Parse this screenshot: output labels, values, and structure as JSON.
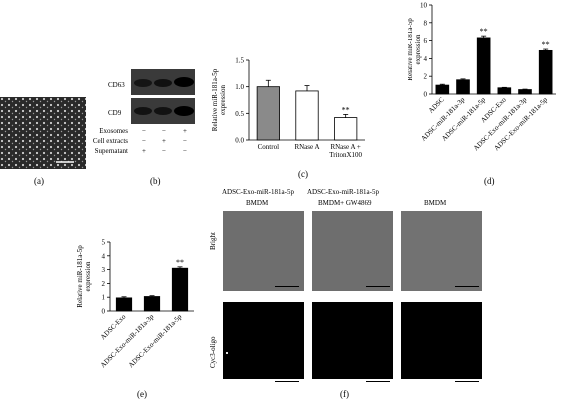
{
  "panels": {
    "a": {
      "letter": "(a)"
    },
    "b": {
      "letter": "(b)",
      "bands": [
        "CD63",
        "CD9"
      ],
      "rows": [
        {
          "label": "Exosomes",
          "marks": [
            "−",
            "−",
            "+"
          ]
        },
        {
          "label": "Cell extracts",
          "marks": [
            "−",
            "+",
            "−"
          ]
        },
        {
          "label": "Supernatant",
          "marks": [
            "+",
            "−",
            "−"
          ]
        }
      ]
    },
    "c": {
      "letter": "(c)"
    },
    "d": {
      "letter": "(d)"
    },
    "e": {
      "letter": "(e)"
    },
    "f": {
      "letter": "(f)",
      "col_headers": [
        {
          "line1": "ADSC-Exo-miR-181a-5p",
          "line2": "BMDM"
        },
        {
          "line1": "ADSC-Exo-miR-181a-5p",
          "line2": "BMDM+ GW4869"
        },
        {
          "line1": "",
          "line2": "BMDM"
        }
      ],
      "row_labels": [
        "Bright",
        "Cyc3-oligo"
      ]
    }
  },
  "chart_data": [
    {
      "type": "bar",
      "panel": "c",
      "categories": [
        "Control",
        "RNase A",
        "RNase A + TritonX100"
      ],
      "values": [
        1.0,
        0.92,
        0.42
      ],
      "errors": [
        0.12,
        0.1,
        0.06
      ],
      "bar_colors": [
        "#8a8a8a",
        "#ffffff",
        "#ffffff"
      ],
      "significance": [
        "",
        "",
        "**"
      ],
      "ylabel": "Relative miR-181a-5p expression",
      "ylim": [
        0,
        1.5
      ],
      "yticks": [
        "0.0",
        "0.5",
        "1.0",
        "1.5"
      ]
    },
    {
      "type": "bar",
      "panel": "d",
      "categories": [
        "ADSC",
        "ADSC-miR-181a-3p",
        "ADSC-miR-181a-5p",
        "ADSC-Exo",
        "ADSC-Exo-miR-181a-3p",
        "ADSC-Exo-miR-181a-5p"
      ],
      "values": [
        1.0,
        1.6,
        6.3,
        0.7,
        0.5,
        4.9
      ],
      "errors": [
        0.1,
        0.1,
        0.2,
        0.05,
        0.05,
        0.15
      ],
      "significance": [
        "",
        "",
        "**",
        "",
        "",
        "**"
      ],
      "ylabel": "Relative miR-181a-5p expression",
      "ylim": [
        0,
        10
      ],
      "yticks": [
        "0",
        "2",
        "4",
        "6",
        "8",
        "10"
      ]
    },
    {
      "type": "bar",
      "panel": "e",
      "categories": [
        "ADSC-Exo",
        "ADSC-Exo-miR-181a-3p",
        "ADSC-Exo-miR-181a-5p"
      ],
      "values": [
        0.95,
        1.05,
        3.1
      ],
      "errors": [
        0.08,
        0.06,
        0.1
      ],
      "significance": [
        "",
        "",
        "**"
      ],
      "ylabel": "Relative miR-181a-5p expression",
      "ylim": [
        0,
        5
      ],
      "yticks": [
        "0",
        "1",
        "2",
        "3",
        "4",
        "5"
      ]
    }
  ]
}
